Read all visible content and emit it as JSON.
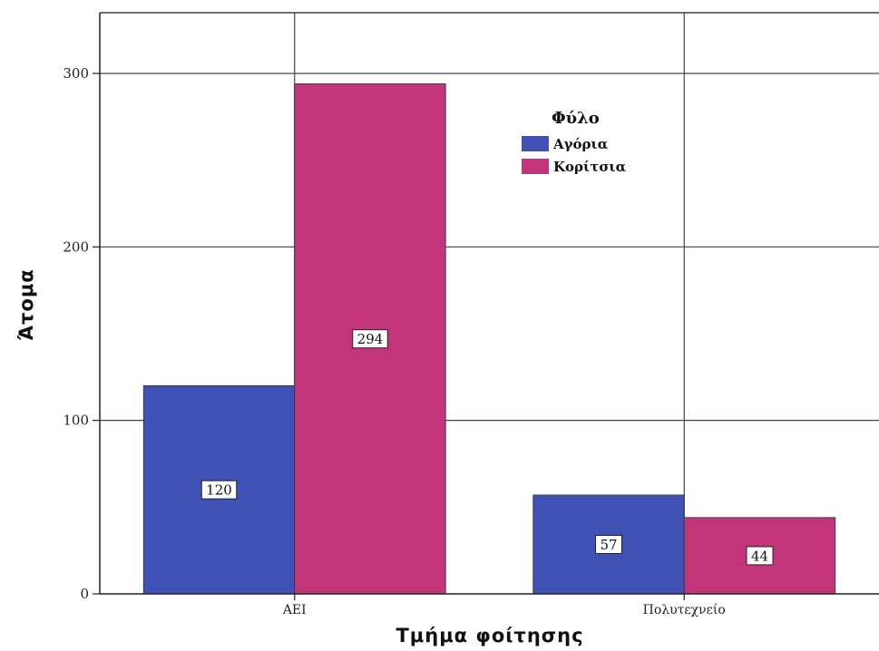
{
  "chart_data": {
    "type": "bar",
    "title": "",
    "xlabel": "Τμήμα φοίτησης",
    "ylabel": "Άτομα",
    "categories": [
      "ΑΕΙ",
      "Πολυτεχνείο"
    ],
    "series": [
      {
        "name": "Αγόρια",
        "values": [
          120,
          57
        ],
        "color": "#3f51b5"
      },
      {
        "name": "Κορίτσια",
        "values": [
          294,
          44
        ],
        "color": "#c2357a"
      }
    ],
    "ylim": [
      0,
      335
    ],
    "yticks": [
      0,
      100,
      200,
      300
    ],
    "legend": {
      "title": "Φύλο",
      "placement": "top-right"
    },
    "grid": true
  }
}
